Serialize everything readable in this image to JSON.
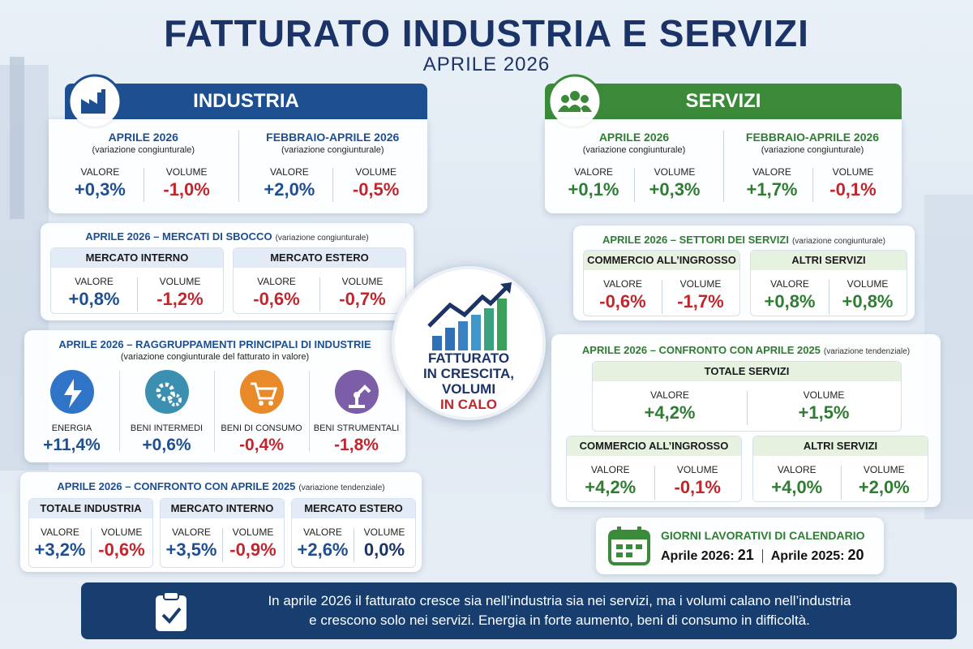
{
  "header": {
    "title": "FATTURATO INDUSTRIA E SERVIZI",
    "subtitle": "APRILE 2026"
  },
  "industria": {
    "title": "INDUSTRIA",
    "summary": [
      {
        "period": "APRILE 2026",
        "note": "(variazione congiunturale)",
        "items": [
          {
            "label": "VALORE",
            "value": "+0,3%"
          },
          {
            "label": "VOLUME",
            "value": "-1,0%"
          }
        ]
      },
      {
        "period": "FEBBRAIO-APRILE 2026",
        "note": "(variazione congiunturale)",
        "items": [
          {
            "label": "VALORE",
            "value": "+2,0%"
          },
          {
            "label": "VOLUME",
            "value": "-0,5%"
          }
        ]
      }
    ],
    "mercati": {
      "title": "APRILE 2026 – MERCATI DI SBOCCO",
      "note": "(variazione congiunturale)",
      "groups": [
        {
          "name": "MERCATO INTERNO",
          "items": [
            {
              "label": "VALORE",
              "value": "+0,8%"
            },
            {
              "label": "VOLUME",
              "value": "-1,2%"
            }
          ]
        },
        {
          "name": "MERCATO ESTERO",
          "items": [
            {
              "label": "VALORE",
              "value": "-0,6%"
            },
            {
              "label": "VOLUME",
              "value": "-0,7%"
            }
          ]
        }
      ]
    },
    "raggruppamenti": {
      "title": "APRILE 2026 – RAGGRUPPAMENTI PRINCIPALI DI INDUSTRIE",
      "note": "(variazione congiunturale del fatturato in valore)",
      "items": [
        {
          "label": "ENERGIA",
          "value": "+11,4%"
        },
        {
          "label": "BENI INTERMEDI",
          "value": "+0,6%"
        },
        {
          "label": "BENI DI CONSUMO",
          "value": "-0,4%"
        },
        {
          "label": "BENI STRUMENTALI",
          "value": "-1,8%"
        }
      ]
    },
    "confronto": {
      "title": "APRILE 2026 – CONFRONTO CON APRILE 2025",
      "note": "(variazione tendenziale)",
      "groups": [
        {
          "name": "TOTALE INDUSTRIA",
          "items": [
            {
              "label": "VALORE",
              "value": "+3,2%"
            },
            {
              "label": "VOLUME",
              "value": "-0,6%"
            }
          ]
        },
        {
          "name": "MERCATO INTERNO",
          "items": [
            {
              "label": "VALORE",
              "value": "+3,5%"
            },
            {
              "label": "VOLUME",
              "value": "-0,9%"
            }
          ]
        },
        {
          "name": "MERCATO ESTERO",
          "items": [
            {
              "label": "VALORE",
              "value": "+2,6%"
            },
            {
              "label": "VOLUME",
              "value": "0,0%"
            }
          ]
        }
      ]
    }
  },
  "center": {
    "lines": [
      "FATTURATO",
      "IN CRESCITA,",
      "VOLUMI"
    ],
    "highlight": "IN CALO"
  },
  "servizi": {
    "title": "SERVIZI",
    "summary": [
      {
        "period": "APRILE 2026",
        "note": "(variazione congiunturale)",
        "items": [
          {
            "label": "VALORE",
            "value": "+0,1%"
          },
          {
            "label": "VOLUME",
            "value": "+0,3%"
          }
        ]
      },
      {
        "period": "FEBBRAIO-APRILE 2026",
        "note": "(variazione congiunturale)",
        "items": [
          {
            "label": "VALORE",
            "value": "+1,7%"
          },
          {
            "label": "VOLUME",
            "value": "-0,1%"
          }
        ]
      }
    ],
    "settori": {
      "title": "APRILE 2026 – SETTORI DEI SERVIZI",
      "note": "(variazione congiunturale)",
      "groups": [
        {
          "name": "COMMERCIO ALL’INGROSSO",
          "items": [
            {
              "label": "VALORE",
              "value": "-0,6%"
            },
            {
              "label": "VOLUME",
              "value": "-1,7%"
            }
          ]
        },
        {
          "name": "ALTRI SERVIZI",
          "items": [
            {
              "label": "VALORE",
              "value": "+0,8%"
            },
            {
              "label": "VOLUME",
              "value": "+0,8%"
            }
          ]
        }
      ]
    },
    "confronto": {
      "title": "APRILE 2026 – CONFRONTO CON APRILE 2025",
      "note": "(variazione tendenziale)",
      "totale": {
        "name": "TOTALE SERVIZI",
        "items": [
          {
            "label": "VALORE",
            "value": "+4,2%"
          },
          {
            "label": "VOLUME",
            "value": "+1,5%"
          }
        ]
      },
      "groups": [
        {
          "name": "COMMERCIO ALL’INGROSSO",
          "items": [
            {
              "label": "VALORE",
              "value": "+4,2%"
            },
            {
              "label": "VOLUME",
              "value": "-0,1%"
            }
          ]
        },
        {
          "name": "ALTRI SERVIZI",
          "items": [
            {
              "label": "VALORE",
              "value": "+4,0%"
            },
            {
              "label": "VOLUME",
              "value": "+2,0%"
            }
          ]
        }
      ]
    }
  },
  "calendar": {
    "title": "GIORNI LAVORATIVI DI CALENDARIO",
    "items": [
      {
        "label": "Aprile 2026:",
        "value": "21"
      },
      {
        "label": "Aprile 2025:",
        "value": "20"
      }
    ]
  },
  "footer": {
    "lines": [
      "In aprile 2026 il fatturato cresce sia nell’industria sia nei servizi, ma i volumi calano nell’industria",
      "e crescono solo nei servizi. Energia in forte aumento, beni di consumo in difficoltà."
    ]
  }
}
